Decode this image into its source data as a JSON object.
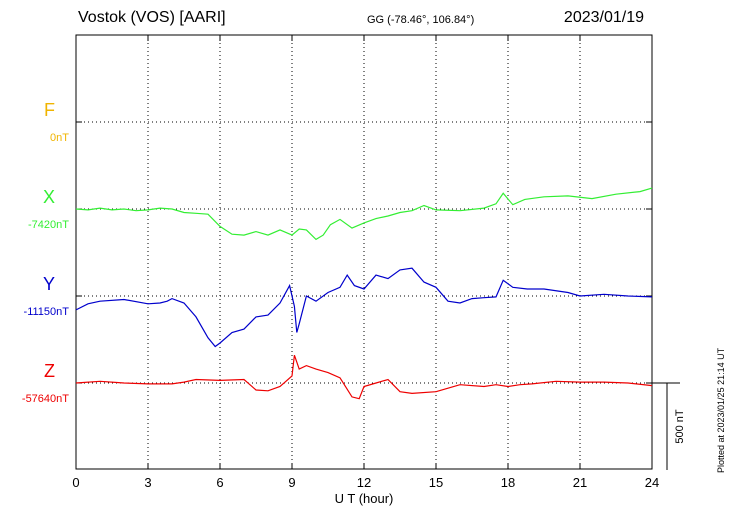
{
  "header": {
    "station": "Vostok (VOS)  [AARI]",
    "coords": "GG (-78.46°, 106.84°)",
    "date": "2023/01/19"
  },
  "footer": {
    "plotted": "Plotted at 2023/01/25 21:14 UT"
  },
  "chart_data": {
    "type": "line",
    "title": "Vostok (VOS)  [AARI]",
    "xlabel": "U T (hour)",
    "xlim": [
      0,
      24
    ],
    "xticks": [
      "0",
      "3",
      "6",
      "9",
      "12",
      "15",
      "18",
      "21",
      "24"
    ],
    "grid": true,
    "scale_bar": {
      "value_nT": 500,
      "label": "500 nT"
    },
    "series": [
      {
        "name": "F",
        "baseline_label": "0nT",
        "color": "#f0b400",
        "values": []
      },
      {
        "name": "X",
        "baseline_label": "-7420nT",
        "color": "#33ee33",
        "points": [
          [
            0,
            0
          ],
          [
            0.5,
            -5
          ],
          [
            1,
            5
          ],
          [
            1.5,
            -5
          ],
          [
            2,
            0
          ],
          [
            2.5,
            -10
          ],
          [
            3,
            -5
          ],
          [
            3.5,
            5
          ],
          [
            4,
            0
          ],
          [
            4.5,
            -20
          ],
          [
            5,
            -25
          ],
          [
            5.5,
            -30
          ],
          [
            6,
            -100
          ],
          [
            6.5,
            -145
          ],
          [
            7,
            -150
          ],
          [
            7.5,
            -130
          ],
          [
            8,
            -150
          ],
          [
            8.5,
            -120
          ],
          [
            9,
            -150
          ],
          [
            9.3,
            -115
          ],
          [
            9.6,
            -120
          ],
          [
            10,
            -175
          ],
          [
            10.3,
            -150
          ],
          [
            10.6,
            -90
          ],
          [
            11,
            -60
          ],
          [
            11.5,
            -110
          ],
          [
            12,
            -80
          ],
          [
            12.5,
            -55
          ],
          [
            13,
            -40
          ],
          [
            13.5,
            -20
          ],
          [
            14,
            -10
          ],
          [
            14.5,
            20
          ],
          [
            15,
            -5
          ],
          [
            16,
            -10
          ],
          [
            17,
            5
          ],
          [
            17.5,
            30
          ],
          [
            17.8,
            90
          ],
          [
            18.2,
            25
          ],
          [
            18.7,
            55
          ],
          [
            19.5,
            70
          ],
          [
            20.5,
            75
          ],
          [
            21.5,
            60
          ],
          [
            22.5,
            85
          ],
          [
            23.5,
            100
          ],
          [
            24,
            120
          ]
        ]
      },
      {
        "name": "Y",
        "baseline_label": "-11150nT",
        "color": "#0000cc",
        "points": [
          [
            0,
            -80
          ],
          [
            0.5,
            -45
          ],
          [
            1,
            -30
          ],
          [
            2,
            -20
          ],
          [
            3,
            -45
          ],
          [
            3.5,
            -40
          ],
          [
            3.8,
            -30
          ],
          [
            4,
            -15
          ],
          [
            4.5,
            -40
          ],
          [
            5,
            -120
          ],
          [
            5.5,
            -240
          ],
          [
            5.8,
            -290
          ],
          [
            6,
            -270
          ],
          [
            6.5,
            -210
          ],
          [
            7,
            -190
          ],
          [
            7.5,
            -120
          ],
          [
            8,
            -110
          ],
          [
            8.5,
            -40
          ],
          [
            8.9,
            60
          ],
          [
            9.1,
            -60
          ],
          [
            9.2,
            -210
          ],
          [
            9.3,
            -160
          ],
          [
            9.6,
            0
          ],
          [
            10,
            -30
          ],
          [
            10.5,
            20
          ],
          [
            11,
            50
          ],
          [
            11.3,
            120
          ],
          [
            11.6,
            60
          ],
          [
            12,
            40
          ],
          [
            12.5,
            120
          ],
          [
            13,
            100
          ],
          [
            13.5,
            150
          ],
          [
            14,
            160
          ],
          [
            14.5,
            80
          ],
          [
            15,
            50
          ],
          [
            15.5,
            -30
          ],
          [
            16,
            -40
          ],
          [
            16.5,
            -15
          ],
          [
            17,
            -10
          ],
          [
            17.5,
            -5
          ],
          [
            17.8,
            90
          ],
          [
            18.2,
            50
          ],
          [
            18.8,
            40
          ],
          [
            19.5,
            40
          ],
          [
            20.5,
            20
          ],
          [
            21,
            0
          ],
          [
            22,
            10
          ],
          [
            23,
            0
          ],
          [
            24,
            -5
          ]
        ]
      },
      {
        "name": "Z",
        "baseline_label": "-57640nT",
        "color": "#ee0000",
        "points": [
          [
            0,
            0
          ],
          [
            1,
            10
          ],
          [
            2,
            0
          ],
          [
            3,
            -5
          ],
          [
            4,
            -5
          ],
          [
            4.5,
            5
          ],
          [
            5,
            20
          ],
          [
            6,
            15
          ],
          [
            7,
            20
          ],
          [
            7.5,
            -40
          ],
          [
            8,
            -45
          ],
          [
            8.5,
            -20
          ],
          [
            9,
            40
          ],
          [
            9.1,
            160
          ],
          [
            9.3,
            80
          ],
          [
            9.6,
            100
          ],
          [
            10,
            80
          ],
          [
            10.5,
            60
          ],
          [
            11,
            30
          ],
          [
            11.5,
            -80
          ],
          [
            11.8,
            -90
          ],
          [
            12,
            -20
          ],
          [
            12.5,
            0
          ],
          [
            13,
            20
          ],
          [
            13.5,
            -50
          ],
          [
            14,
            -60
          ],
          [
            15,
            -50
          ],
          [
            15.5,
            -30
          ],
          [
            16,
            -10
          ],
          [
            17,
            -20
          ],
          [
            17.5,
            -10
          ],
          [
            18,
            -20
          ],
          [
            18.5,
            -10
          ],
          [
            19,
            -5
          ],
          [
            20,
            10
          ],
          [
            21,
            5
          ],
          [
            22,
            5
          ],
          [
            23,
            0
          ],
          [
            24,
            -15
          ]
        ]
      }
    ],
    "y_scale_bar_nT": 500
  }
}
